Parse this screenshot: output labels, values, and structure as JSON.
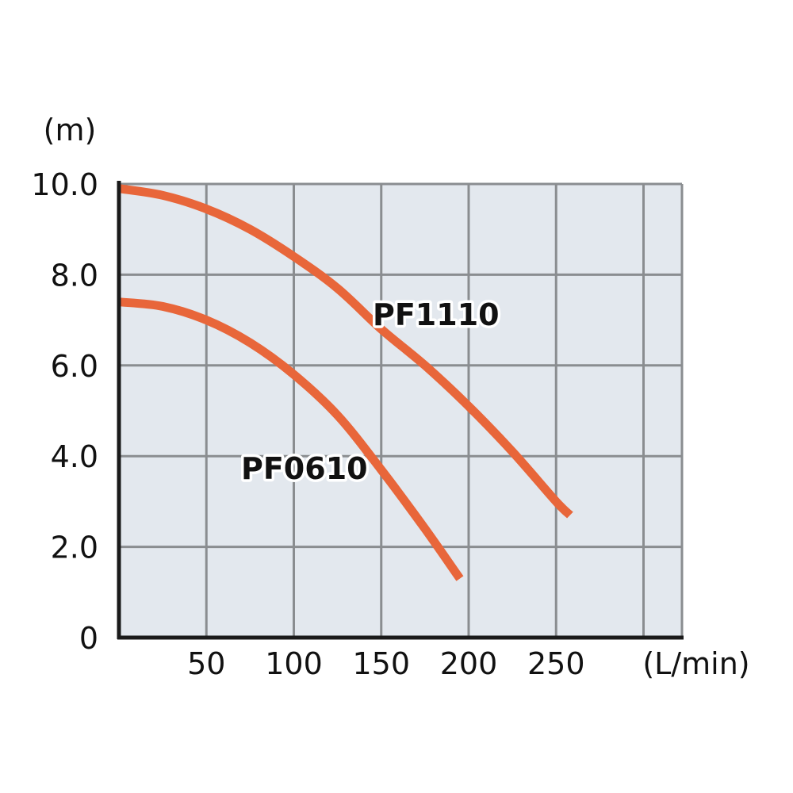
{
  "chart_data": {
    "type": "line",
    "title": "",
    "xlabel": "(L/min)",
    "ylabel": "(m)",
    "xlim": [
      0,
      322
    ],
    "ylim": [
      0,
      10
    ],
    "x_ticks": [
      50,
      100,
      150,
      200,
      250,
      300
    ],
    "x_tick_labels": [
      "50",
      "100",
      "150",
      "200",
      "250",
      ""
    ],
    "y_ticks": [
      0,
      2,
      4,
      6,
      8,
      10
    ],
    "y_tick_labels": [
      "0",
      "2.0",
      "4.0",
      "6.0",
      "8.0",
      "10.0"
    ],
    "grid": true,
    "colors": {
      "plot_background": "#e3e8ee",
      "grid": "#8a8d90",
      "axis": "#1a1a1a",
      "series": "#e8663a"
    },
    "series": [
      {
        "name": "PF1110",
        "x": [
          0,
          25,
          50,
          75,
          100,
          125,
          150,
          175,
          200,
          225,
          250,
          258
        ],
        "y": [
          9.9,
          9.75,
          9.45,
          9.0,
          8.4,
          7.7,
          6.8,
          6.0,
          5.1,
          4.1,
          3.0,
          2.7
        ]
      },
      {
        "name": "PF0610",
        "x": [
          0,
          25,
          50,
          75,
          100,
          125,
          150,
          175,
          195
        ],
        "y": [
          7.4,
          7.3,
          7.0,
          6.5,
          5.8,
          4.9,
          3.7,
          2.4,
          1.3
        ]
      }
    ]
  }
}
